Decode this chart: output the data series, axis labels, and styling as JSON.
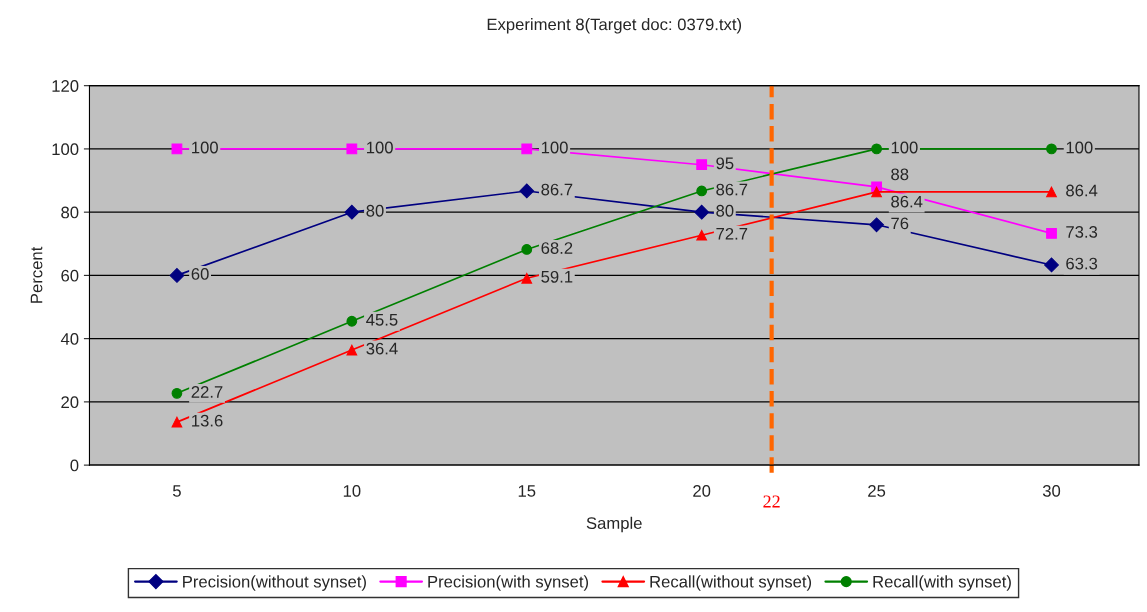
{
  "chart_data": {
    "type": "line",
    "title": "Experiment 8(Target doc: 0379.txt)",
    "xlabel": "Sample",
    "ylabel": "Percent",
    "x": [
      5,
      10,
      15,
      20,
      25,
      30
    ],
    "series": [
      {
        "name": "Precision(without synset)",
        "color": "#000080",
        "marker": "diamond",
        "values": [
          60,
          80,
          86.7,
          80,
          76,
          63.3
        ]
      },
      {
        "name": "Precision(with synset)",
        "color": "#ff00ff",
        "marker": "square",
        "values": [
          100,
          100,
          100,
          95,
          88,
          73.3
        ]
      },
      {
        "name": "Recall(without synset)",
        "color": "#ff0000",
        "marker": "triangle",
        "values": [
          13.6,
          36.4,
          59.1,
          72.7,
          86.4,
          86.4
        ]
      },
      {
        "name": "Recall(with synset)",
        "color": "#008000",
        "marker": "circle",
        "values": [
          22.7,
          45.5,
          68.2,
          86.7,
          100,
          100
        ]
      }
    ],
    "xlim": [
      2.5,
      32.5
    ],
    "xticks": [
      5,
      10,
      15,
      20,
      25,
      30
    ],
    "ylim": [
      0,
      120
    ],
    "yticks": [
      0,
      20,
      40,
      60,
      80,
      100,
      120
    ],
    "ref_lines": [
      {
        "axis": "x",
        "value": 22,
        "label": "22",
        "color": "#ff6600",
        "line_style": "dashed"
      }
    ],
    "data_labels": true,
    "grid": "y",
    "legend": "bottom",
    "line_style": "solid"
  }
}
